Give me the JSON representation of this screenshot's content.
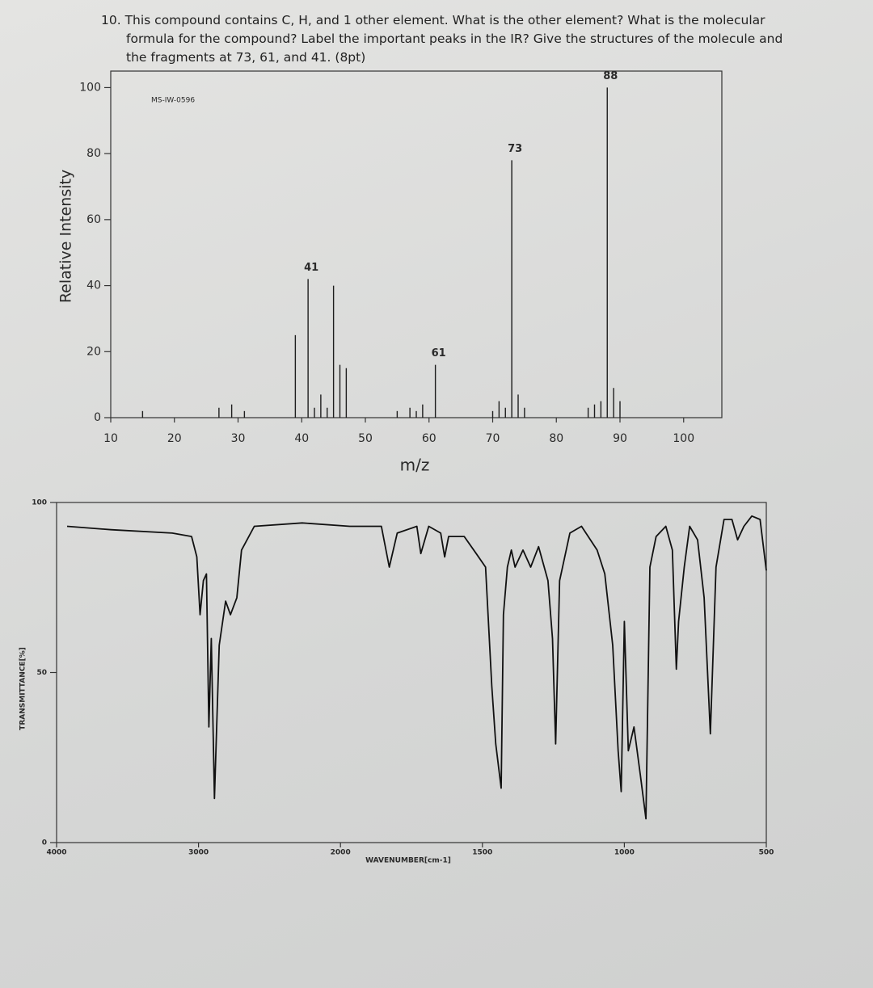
{
  "question": "10. This compound contains C, H, and 1 other element. What is the other element? What is the molecular formula for the compound? Label the important peaks in the IR? Give the structures of the molecule and the fragments at 73, 61, and 41. (8pt)",
  "chart_data": [
    {
      "type": "bar",
      "sample_id": "MS-IW-0596",
      "xlabel": "m/z",
      "ylabel": "Relative Intensity",
      "x": [
        15,
        27,
        29,
        31,
        39,
        41,
        42,
        43,
        44,
        45,
        46,
        47,
        55,
        57,
        58,
        59,
        61,
        70,
        71,
        72,
        73,
        74,
        75,
        85,
        86,
        87,
        88,
        89,
        90
      ],
      "values": [
        2,
        3,
        4,
        2,
        25,
        42,
        3,
        7,
        3,
        40,
        16,
        15,
        2,
        3,
        2,
        4,
        16,
        2,
        5,
        3,
        78,
        7,
        3,
        3,
        4,
        5,
        100,
        9,
        5
      ],
      "labeled_peaks": [
        88,
        73,
        41,
        61
      ],
      "color": "#1e1e1e",
      "xlim": [
        10,
        106
      ],
      "xticks": [
        10,
        20,
        30,
        40,
        50,
        60,
        70,
        80,
        90,
        100
      ],
      "ylim": [
        0,
        105
      ],
      "yticks": [
        0,
        20,
        40,
        60,
        80,
        100
      ]
    },
    {
      "type": "line",
      "xlabel": "WAVENUMBER[cm-1]",
      "ylabel": "TRANSMITTANCE[%]",
      "x": [
        3926,
        3617,
        3185,
        3049,
        3012,
        2989,
        2966,
        2944,
        2927,
        2910,
        2888,
        2854,
        2809,
        2775,
        2730,
        2697,
        2607,
        2270,
        1967,
        1856,
        1828,
        1800,
        1731,
        1717,
        1689,
        1647,
        1633,
        1619,
        1564,
        1522,
        1489,
        1467,
        1453,
        1434,
        1426,
        1412,
        1398,
        1385,
        1357,
        1330,
        1302,
        1269,
        1253,
        1242,
        1228,
        1192,
        1151,
        1096,
        1069,
        1041,
        1022,
        1011,
        1000,
        986,
        966,
        944,
        924,
        910,
        888,
        854,
        831,
        817,
        809,
        789,
        770,
        742,
        719,
        697,
        677,
        649,
        621,
        601,
        579,
        551,
        522,
        500
      ],
      "values": [
        93,
        92,
        91,
        90,
        84,
        67,
        77,
        79,
        34,
        60,
        13,
        58,
        71,
        67,
        72,
        86,
        93,
        94,
        93,
        93,
        81,
        91,
        93,
        85,
        93,
        91,
        84,
        90,
        90,
        85,
        81,
        46,
        29,
        16,
        67,
        81,
        86,
        81,
        86,
        81,
        87,
        77,
        60,
        29,
        77,
        91,
        93,
        86,
        79,
        58,
        27,
        15,
        65,
        27,
        34,
        20,
        7,
        81,
        90,
        93,
        86,
        51,
        65,
        81,
        93,
        89,
        72,
        32,
        81,
        95,
        95,
        89,
        93,
        96,
        95,
        80
      ],
      "color": "#111111",
      "xlim": [
        4000,
        500
      ],
      "xticks": [
        4000,
        3000,
        2000,
        1500,
        1000,
        500
      ],
      "ylim": [
        0,
        100
      ],
      "yticks": [
        0,
        50,
        100
      ]
    }
  ]
}
